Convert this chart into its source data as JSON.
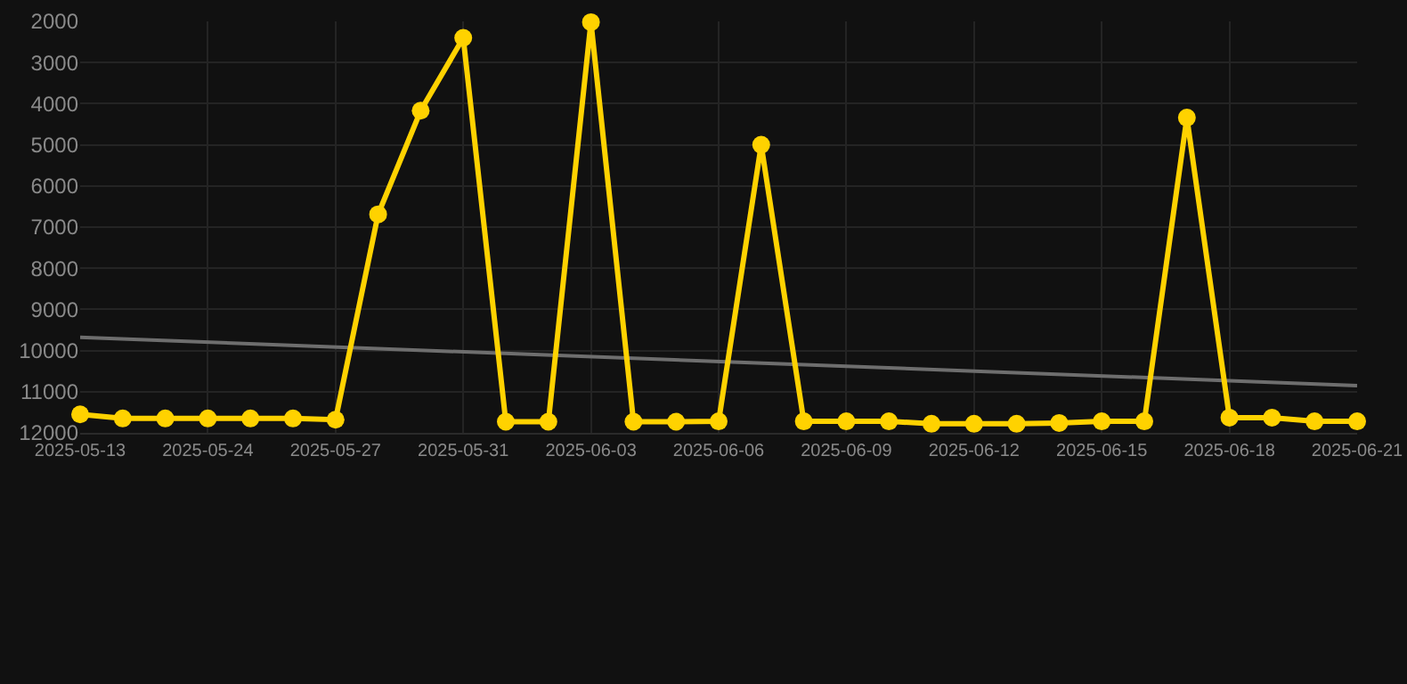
{
  "chart_data": {
    "type": "line",
    "categories": [
      "2025-05-13",
      null,
      null,
      "2025-05-24",
      null,
      null,
      "2025-05-27",
      null,
      null,
      "2025-05-31",
      null,
      null,
      "2025-06-03",
      null,
      null,
      "2025-06-06",
      null,
      null,
      "2025-06-09",
      null,
      null,
      "2025-06-12",
      null,
      null,
      "2025-06-15",
      null,
      null,
      "2025-06-18",
      null,
      null,
      "2025-06-21"
    ],
    "series": [
      {
        "color": "#ffd200",
        "values": [
          11550,
          11650,
          11650,
          11650,
          11650,
          11650,
          11680,
          6690,
          4170,
          2400,
          11730,
          11730,
          2020,
          11730,
          11730,
          11720,
          5000,
          11720,
          11720,
          11720,
          11780,
          11780,
          11780,
          11760,
          11720,
          11720,
          4340,
          11630,
          11630,
          11720,
          11720
        ]
      },
      {
        "type": "line",
        "color": "#6e6e6e",
        "marker": "none",
        "values": [
          9680,
          null,
          null,
          null,
          null,
          null,
          null,
          null,
          null,
          null,
          null,
          null,
          null,
          null,
          null,
          null,
          null,
          null,
          null,
          null,
          null,
          null,
          null,
          null,
          null,
          null,
          null,
          null,
          null,
          null,
          10850
        ]
      }
    ],
    "ylim": [
      12000,
      2000
    ],
    "yticks": [
      2000,
      3000,
      4000,
      5000,
      6000,
      7000,
      8000,
      9000,
      10000,
      11000,
      12000
    ],
    "grid": true,
    "marker": "circle",
    "line_style": "solid"
  }
}
